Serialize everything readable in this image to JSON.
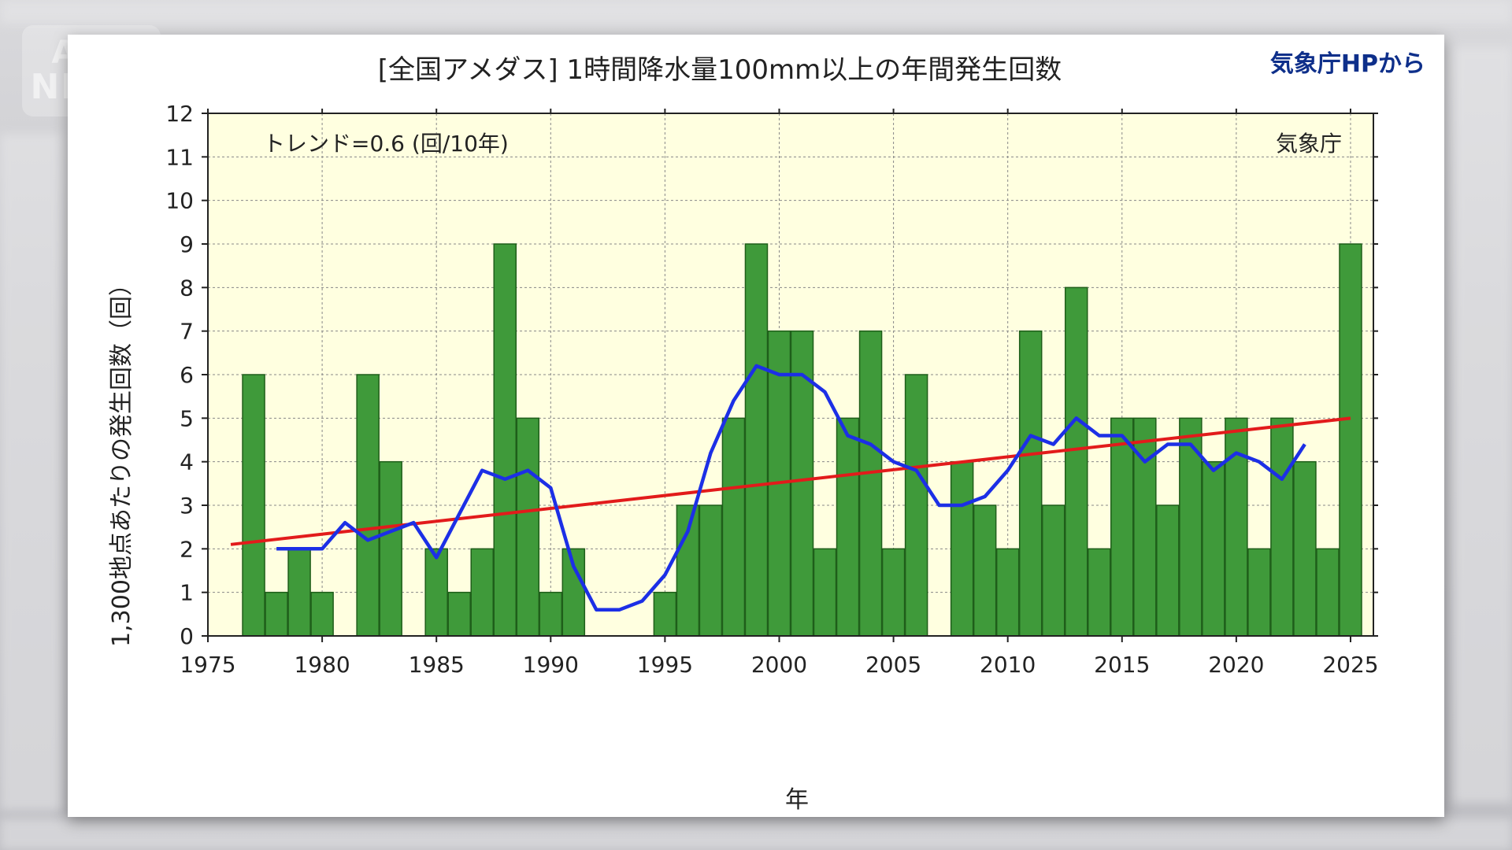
{
  "logo": {
    "line1": "ANN",
    "line2": "NEWS"
  },
  "source_note": "気象庁HPから",
  "chart_data": {
    "type": "bar",
    "title": "[全国アメダス] 1時間降水量100mm以上の年間発生回数",
    "xlabel": "年",
    "ylabel": "1,300地点あたりの発生回数（回）",
    "annotation_trend": "トレンド=0.6 (回/10年)",
    "annotation_source": "気象庁",
    "ylim": [
      0,
      12
    ],
    "xlim": [
      1975,
      2026
    ],
    "x_ticks": [
      1975,
      1980,
      1985,
      1990,
      1995,
      2000,
      2005,
      2010,
      2015,
      2020,
      2025
    ],
    "y_ticks": [
      0,
      1,
      2,
      3,
      4,
      5,
      6,
      7,
      8,
      9,
      10,
      11,
      12
    ],
    "grid": true,
    "colors": {
      "bar": "#3f9a3a",
      "bar_edge": "#1f5e1a",
      "moving_avg": "#1c2fe6",
      "trend": "#e21b1b",
      "plot_bg": "#ffffe0"
    },
    "bars": {
      "x": [
        1977,
        1978,
        1979,
        1980,
        1981,
        1982,
        1983,
        1984,
        1985,
        1986,
        1987,
        1988,
        1989,
        1990,
        1991,
        1992,
        1993,
        1994,
        1995,
        1996,
        1997,
        1998,
        1999,
        2000,
        2001,
        2002,
        2003,
        2004,
        2005,
        2006,
        2007,
        2008,
        2009,
        2010,
        2011,
        2012,
        2013,
        2014,
        2015,
        2016,
        2017,
        2018,
        2019,
        2020,
        2021,
        2022,
        2023,
        2024,
        2025
      ],
      "values": [
        6,
        1,
        2,
        1,
        0,
        6,
        4,
        0,
        2,
        1,
        2,
        9,
        5,
        1,
        2,
        0,
        0,
        0,
        1,
        3,
        3,
        5,
        9,
        7,
        7,
        2,
        5,
        7,
        2,
        6,
        0,
        4,
        3,
        2,
        7,
        3,
        8,
        2,
        5,
        5,
        3,
        5,
        4,
        5,
        2,
        5,
        4,
        2,
        9
      ]
    },
    "moving_average": {
      "x": [
        1978,
        1979,
        1980,
        1981,
        1982,
        1983,
        1984,
        1985,
        1986,
        1987,
        1988,
        1989,
        1990,
        1991,
        1992,
        1993,
        1994,
        1995,
        1996,
        1997,
        1998,
        1999,
        2000,
        2001,
        2002,
        2003,
        2004,
        2005,
        2006,
        2007,
        2008,
        2009,
        2010,
        2011,
        2012,
        2013,
        2014,
        2015,
        2016,
        2017,
        2018,
        2019,
        2020,
        2021,
        2022,
        2023
      ],
      "values": [
        2.0,
        2.0,
        2.0,
        2.6,
        2.2,
        2.4,
        2.6,
        1.8,
        2.8,
        3.8,
        3.6,
        3.8,
        3.4,
        1.6,
        0.6,
        0.6,
        0.8,
        1.4,
        2.4,
        4.2,
        5.4,
        6.2,
        6.0,
        6.0,
        5.6,
        4.6,
        4.4,
        4.0,
        3.8,
        3.0,
        3.0,
        3.2,
        3.8,
        4.6,
        4.4,
        5.0,
        4.6,
        4.6,
        4.0,
        4.4,
        4.4,
        3.8,
        4.2,
        4.0,
        3.6,
        4.4
      ]
    },
    "trend_line": {
      "x": [
        1976,
        2025
      ],
      "values": [
        2.1,
        5.0
      ]
    }
  }
}
